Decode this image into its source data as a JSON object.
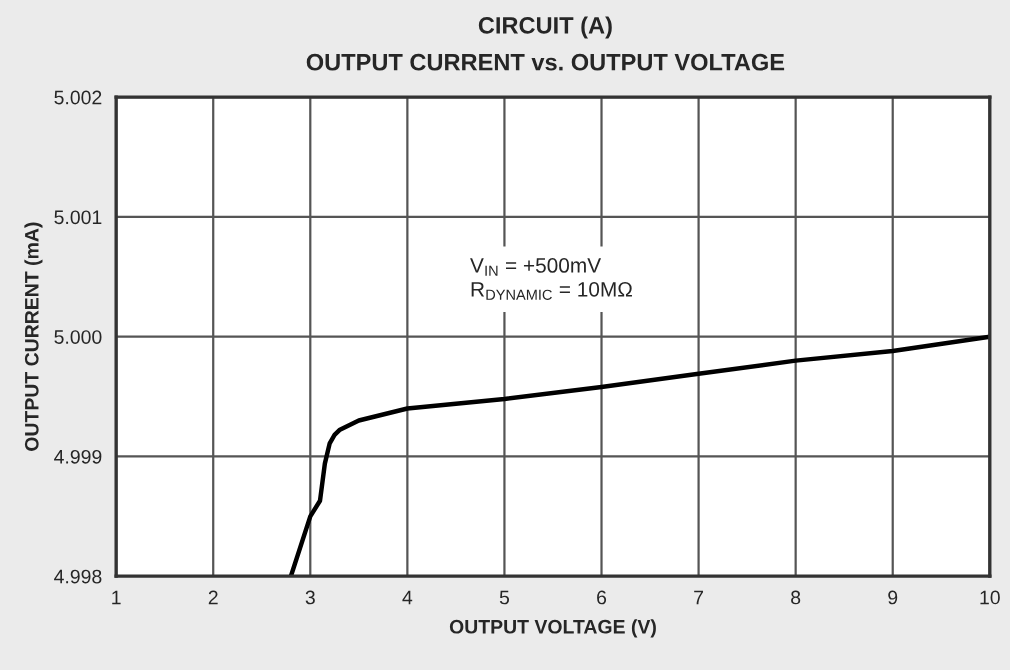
{
  "chart_data": {
    "type": "line",
    "title": "CIRCUIT (A)",
    "subtitle": "OUTPUT CURRENT vs. OUTPUT VOLTAGE",
    "xlabel": "OUTPUT VOLTAGE (V)",
    "ylabel": "OUTPUT CURRENT (mA)",
    "x": [
      2.8,
      3.0,
      3.1,
      3.15,
      3.2,
      3.25,
      3.3,
      3.5,
      4,
      5,
      6,
      7,
      8,
      9,
      10
    ],
    "series": [
      {
        "color": "#000000",
        "values": [
          4.998,
          4.9985,
          4.99863,
          4.99894,
          4.99911,
          4.99918,
          4.99922,
          4.9993,
          4.9994,
          4.99948,
          4.99958,
          4.99969,
          4.9998,
          4.99988,
          5.0
        ]
      }
    ],
    "xlim": [
      1,
      10
    ],
    "xticks": [
      1,
      2,
      3,
      4,
      5,
      6,
      7,
      8,
      9,
      10
    ],
    "ylim": [
      4.998,
      5.002
    ],
    "yticks": [
      {
        "value": 4.998,
        "label": "4.998"
      },
      {
        "value": 4.999,
        "label": "4.999"
      },
      {
        "value": 5.0,
        "label": "5.000"
      },
      {
        "value": 5.001,
        "label": "5.001"
      },
      {
        "value": 5.002,
        "label": "5.002"
      }
    ],
    "grid": true,
    "marker": "none",
    "line_style": "solid",
    "annotations": [
      "V$_{IN}$ = +500mV\nR$_{DYNAMIC}$ = 10MΩ"
    ]
  }
}
